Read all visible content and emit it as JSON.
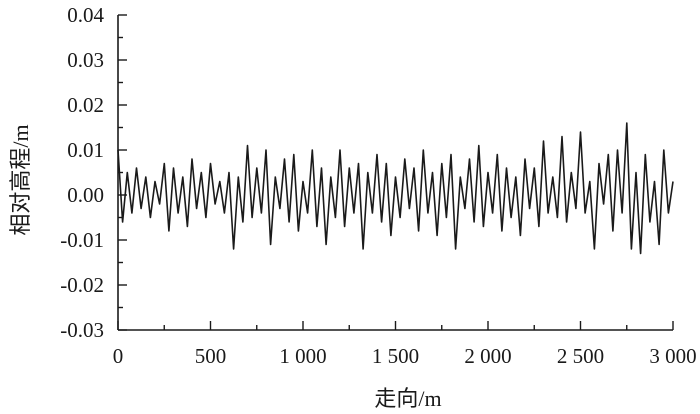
{
  "chart_data": {
    "type": "line",
    "title": "",
    "xlabel": "走向/m",
    "ylabel": "相对高程/m",
    "xlim": [
      0,
      3000
    ],
    "ylim": [
      -0.03,
      0.04
    ],
    "xticks": [
      0,
      500,
      1000,
      1500,
      2000,
      2500,
      3000
    ],
    "xtick_labels": [
      "0",
      "500",
      "1 000",
      "1 500",
      "2 000",
      "2 500",
      "3 000"
    ],
    "yticks": [
      -0.03,
      -0.02,
      -0.01,
      0.0,
      0.01,
      0.02,
      0.03,
      0.04
    ],
    "ytick_labels": [
      "-0.03",
      "-0.02",
      "-0.01",
      "0.00",
      "0.01",
      "0.02",
      "0.03",
      "0.04"
    ],
    "grid": false,
    "line_color": "#1a1a1a",
    "series": [
      {
        "x_step": 25,
        "values": [
          0.01,
          -0.006,
          0.005,
          -0.004,
          0.006,
          -0.003,
          0.004,
          -0.005,
          0.003,
          -0.002,
          0.007,
          -0.008,
          0.006,
          -0.004,
          0.004,
          -0.007,
          0.008,
          -0.003,
          0.005,
          -0.005,
          0.007,
          -0.002,
          0.003,
          -0.004,
          0.005,
          -0.012,
          0.004,
          -0.006,
          0.011,
          -0.005,
          0.006,
          -0.004,
          0.01,
          -0.011,
          0.004,
          -0.003,
          0.008,
          -0.006,
          0.009,
          -0.008,
          0.003,
          -0.004,
          0.01,
          -0.007,
          0.006,
          -0.011,
          0.004,
          -0.005,
          0.01,
          -0.007,
          0.006,
          -0.004,
          0.007,
          -0.012,
          0.005,
          -0.004,
          0.009,
          -0.006,
          0.007,
          -0.009,
          0.004,
          -0.005,
          0.008,
          -0.003,
          0.006,
          -0.008,
          0.01,
          -0.004,
          0.005,
          -0.009,
          0.007,
          -0.005,
          0.009,
          -0.012,
          0.004,
          -0.003,
          0.008,
          -0.006,
          0.011,
          -0.007,
          0.005,
          -0.004,
          0.009,
          -0.008,
          0.006,
          -0.005,
          0.004,
          -0.009,
          0.008,
          -0.003,
          0.006,
          -0.007,
          0.012,
          -0.004,
          0.004,
          -0.005,
          0.013,
          -0.006,
          0.005,
          -0.003,
          0.014,
          -0.004,
          0.003,
          -0.012,
          0.007,
          -0.002,
          0.009,
          -0.008,
          0.01,
          -0.004,
          0.016,
          -0.012,
          0.005,
          -0.013,
          0.009,
          -0.006,
          0.003,
          -0.011,
          0.01,
          -0.004,
          0.003
        ]
      }
    ]
  }
}
